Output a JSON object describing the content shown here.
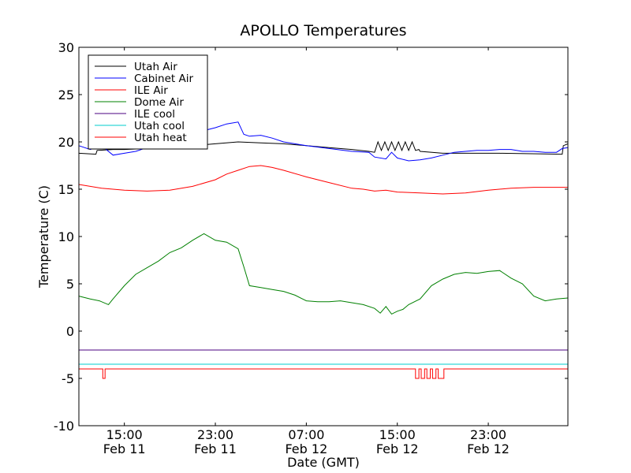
{
  "chart_data": {
    "type": "line",
    "title": "APOLLO Temperatures",
    "xlabel": "Date (GMT)",
    "ylabel": "Temperature (C)",
    "ylim": [
      -10,
      30
    ],
    "xlim": [
      0,
      43
    ],
    "x_units": "hours since Feb 11 11:00 GMT",
    "grid": false,
    "legend_position": "top-left",
    "y_ticks": [
      {
        "value": -10,
        "label": "-10"
      },
      {
        "value": -5,
        "label": "-5"
      },
      {
        "value": 0,
        "label": "0"
      },
      {
        "value": 5,
        "label": "5"
      },
      {
        "value": 10,
        "label": "10"
      },
      {
        "value": 15,
        "label": "15"
      },
      {
        "value": 20,
        "label": "20"
      },
      {
        "value": 25,
        "label": "25"
      },
      {
        "value": 30,
        "label": "30"
      }
    ],
    "x_ticks": [
      {
        "value": 4,
        "time": "15:00",
        "date": "Feb 11"
      },
      {
        "value": 12,
        "time": "23:00",
        "date": "Feb 11"
      },
      {
        "value": 20,
        "time": "07:00",
        "date": "Feb 12"
      },
      {
        "value": 28,
        "time": "15:00",
        "date": "Feb 12"
      },
      {
        "value": 36,
        "time": "23:00",
        "date": "Feb 12"
      }
    ],
    "series": [
      {
        "name": "Utah Air",
        "color": "#000000",
        "x": [
          0,
          1.5,
          1.6,
          3,
          4,
          6,
          8,
          10,
          12,
          14,
          16,
          18,
          20,
          22,
          24,
          25.5,
          26,
          26.3,
          26.6,
          26.9,
          27.2,
          27.5,
          27.8,
          28.1,
          28.4,
          28.7,
          29,
          29.3,
          29.6,
          29.9,
          30,
          32,
          34,
          36,
          37,
          42.5,
          42.6,
          43
        ],
        "y": [
          18.8,
          18.7,
          19.1,
          19.2,
          19.2,
          19.3,
          19.4,
          19.6,
          19.8,
          20,
          19.9,
          19.8,
          19.6,
          19.4,
          19.2,
          19,
          18.9,
          20,
          19.1,
          20,
          19.1,
          20,
          19.1,
          20,
          19.1,
          20,
          19.1,
          20,
          19.1,
          19.2,
          19,
          18.8,
          18.8,
          18.8,
          18.8,
          18.7,
          19.6,
          19.8
        ]
      },
      {
        "name": "Cabinet Air",
        "color": "#0000ff",
        "x": [
          0,
          1,
          2,
          3,
          4,
          5,
          6,
          7,
          8,
          9,
          10,
          11,
          12,
          13,
          14,
          14.5,
          15,
          16,
          17,
          18,
          19,
          20,
          22,
          24,
          25.5,
          26,
          27,
          27.5,
          28,
          29,
          30,
          31,
          32,
          33,
          34,
          35,
          36,
          37,
          38,
          39,
          40,
          41,
          42,
          42.5,
          43
        ],
        "y": [
          19.6,
          19.2,
          19.6,
          18.6,
          18.8,
          19,
          19.4,
          19.6,
          20,
          20.4,
          20.8,
          21.2,
          21.5,
          21.9,
          22.1,
          20.8,
          20.6,
          20.7,
          20.4,
          20,
          19.8,
          19.6,
          19.3,
          19,
          18.9,
          18.4,
          18.2,
          18.9,
          18.3,
          18,
          18.1,
          18.3,
          18.6,
          18.9,
          19,
          19.1,
          19.1,
          19.2,
          19.2,
          19,
          19,
          18.9,
          18.9,
          19.3,
          19.4
        ]
      },
      {
        "name": "ILE Air",
        "color": "#ff0000",
        "x": [
          0,
          2,
          4,
          6,
          8,
          10,
          12,
          13,
          14,
          15,
          16,
          17,
          18,
          20,
          22,
          24,
          25,
          26,
          27,
          28,
          30,
          32,
          34,
          36,
          38,
          40,
          42,
          43
        ],
        "y": [
          15.5,
          15.1,
          14.9,
          14.8,
          14.9,
          15.3,
          16,
          16.6,
          17,
          17.4,
          17.5,
          17.3,
          17,
          16.3,
          15.7,
          15.1,
          15,
          14.8,
          14.9,
          14.7,
          14.6,
          14.5,
          14.6,
          14.9,
          15.1,
          15.2,
          15.2,
          15.2
        ]
      },
      {
        "name": "Dome Air",
        "color": "#008000",
        "x": [
          0,
          1,
          1.8,
          2.6,
          3,
          4,
          5,
          6,
          7,
          8,
          9,
          10,
          11,
          12,
          13,
          14,
          14.5,
          15,
          16,
          17,
          18,
          19,
          20,
          21,
          22,
          23,
          24,
          25,
          26,
          26.5,
          27,
          27.5,
          28,
          28.5,
          29,
          30,
          31,
          32,
          33,
          34,
          35,
          36,
          37,
          38,
          39,
          40,
          41,
          42,
          43
        ],
        "y": [
          3.7,
          3.4,
          3.2,
          2.8,
          3.4,
          4.8,
          6,
          6.7,
          7.4,
          8.3,
          8.8,
          9.6,
          10.3,
          9.6,
          9.4,
          8.7,
          6.8,
          4.8,
          4.6,
          4.4,
          4.2,
          3.8,
          3.2,
          3.1,
          3.1,
          3.2,
          3,
          2.8,
          2.4,
          1.9,
          2.6,
          1.8,
          2.1,
          2.3,
          2.8,
          3.4,
          4.8,
          5.5,
          6,
          6.2,
          6.1,
          6.3,
          6.4,
          5.6,
          5,
          3.7,
          3.2,
          3.4,
          3.5
        ]
      },
      {
        "name": "ILE cool",
        "color": "#4b0082",
        "x": [
          0,
          43
        ],
        "y": [
          -2.0,
          -2.0
        ]
      },
      {
        "name": "Utah cool",
        "color": "#00cccc",
        "x": [
          0,
          43
        ],
        "y": [
          -3.5,
          -3.5
        ]
      },
      {
        "name": "Utah heat",
        "color": "#ff0000",
        "x": [
          0,
          2.1,
          2.1,
          2.3,
          2.3,
          29.6,
          29.6,
          29.9,
          29.9,
          30.1,
          30.1,
          30.4,
          30.4,
          30.6,
          30.6,
          30.9,
          30.9,
          31.1,
          31.1,
          31.4,
          31.4,
          31.6,
          31.6,
          32.1,
          32.1,
          32.3,
          32.3,
          43
        ],
        "y": [
          -4,
          -4,
          -5,
          -5,
          -4,
          -4,
          -5,
          -5,
          -4,
          -4,
          -5,
          -5,
          -4,
          -4,
          -5,
          -5,
          -4,
          -4,
          -5,
          -5,
          -4,
          -4,
          -5,
          -5,
          -4,
          -4,
          -4,
          -4
        ]
      }
    ]
  }
}
